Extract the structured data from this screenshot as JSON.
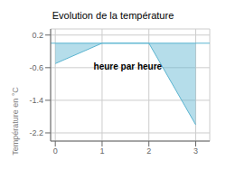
{
  "chart_data": {
    "type": "area",
    "title": "Evolution de la température",
    "ylabel": "Température en °C",
    "annotation": "heure par heure",
    "x": [
      0,
      1,
      2,
      3
    ],
    "values": [
      -0.5,
      0.0,
      0.0,
      -2.0
    ],
    "color": "#5ab4d0",
    "xlim": [
      -0.1,
      3.3
    ],
    "xticks": [
      0,
      1,
      2,
      3
    ],
    "ylim": [
      -2.4,
      0.35
    ],
    "yticks": [
      0.2,
      -0.6,
      -1.4,
      -2.2
    ],
    "grid": true
  }
}
